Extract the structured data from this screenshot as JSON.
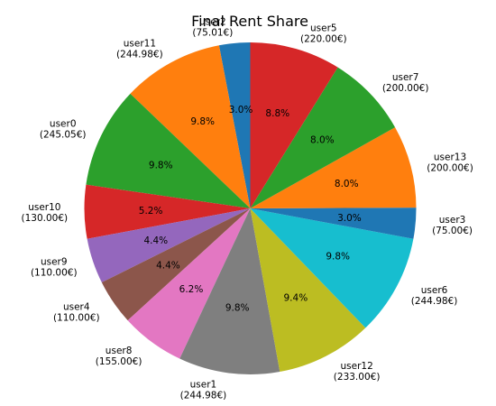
{
  "chart_data": {
    "type": "pie",
    "title": "Final Rent Share",
    "slices": [
      {
        "label": "user2",
        "amount": "(75.01€)",
        "value": 75.01,
        "pct": "3.0%",
        "color": "#1f77b4"
      },
      {
        "label": "user11",
        "amount": "(244.98€)",
        "value": 244.98,
        "pct": "9.8%",
        "color": "#ff7f0e"
      },
      {
        "label": "user0",
        "amount": "(245.05€)",
        "value": 245.05,
        "pct": "9.8%",
        "color": "#2ca02c"
      },
      {
        "label": "user10",
        "amount": "(130.00€)",
        "value": 130.0,
        "pct": "5.2%",
        "color": "#d62728"
      },
      {
        "label": "user9",
        "amount": "(110.00€)",
        "value": 110.0,
        "pct": "4.4%",
        "color": "#9467bd"
      },
      {
        "label": "user4",
        "amount": "(110.00€)",
        "value": 110.0,
        "pct": "4.4%",
        "color": "#8c564b"
      },
      {
        "label": "user8",
        "amount": "(155.00€)",
        "value": 155.0,
        "pct": "6.2%",
        "color": "#e377c2"
      },
      {
        "label": "user1",
        "amount": "(244.98€)",
        "value": 244.98,
        "pct": "9.8%",
        "color": "#7f7f7f"
      },
      {
        "label": "user12",
        "amount": "(233.00€)",
        "value": 233.0,
        "pct": "9.4%",
        "color": "#bcbd22"
      },
      {
        "label": "user6",
        "amount": "(244.98€)",
        "value": 244.98,
        "pct": "9.8%",
        "color": "#17becf"
      },
      {
        "label": "user3",
        "amount": "(75.00€)",
        "value": 75.0,
        "pct": "3.0%",
        "color": "#1f77b4"
      },
      {
        "label": "user13",
        "amount": "(200.00€)",
        "value": 200.0,
        "pct": "8.0%",
        "color": "#ff7f0e"
      },
      {
        "label": "user7",
        "amount": "(200.00€)",
        "value": 200.0,
        "pct": "8.0%",
        "color": "#2ca02c"
      },
      {
        "label": "user5",
        "amount": "(220.00€)",
        "value": 220.0,
        "pct": "8.8%",
        "color": "#d62728"
      }
    ],
    "start": "top, counter-clockwise"
  }
}
